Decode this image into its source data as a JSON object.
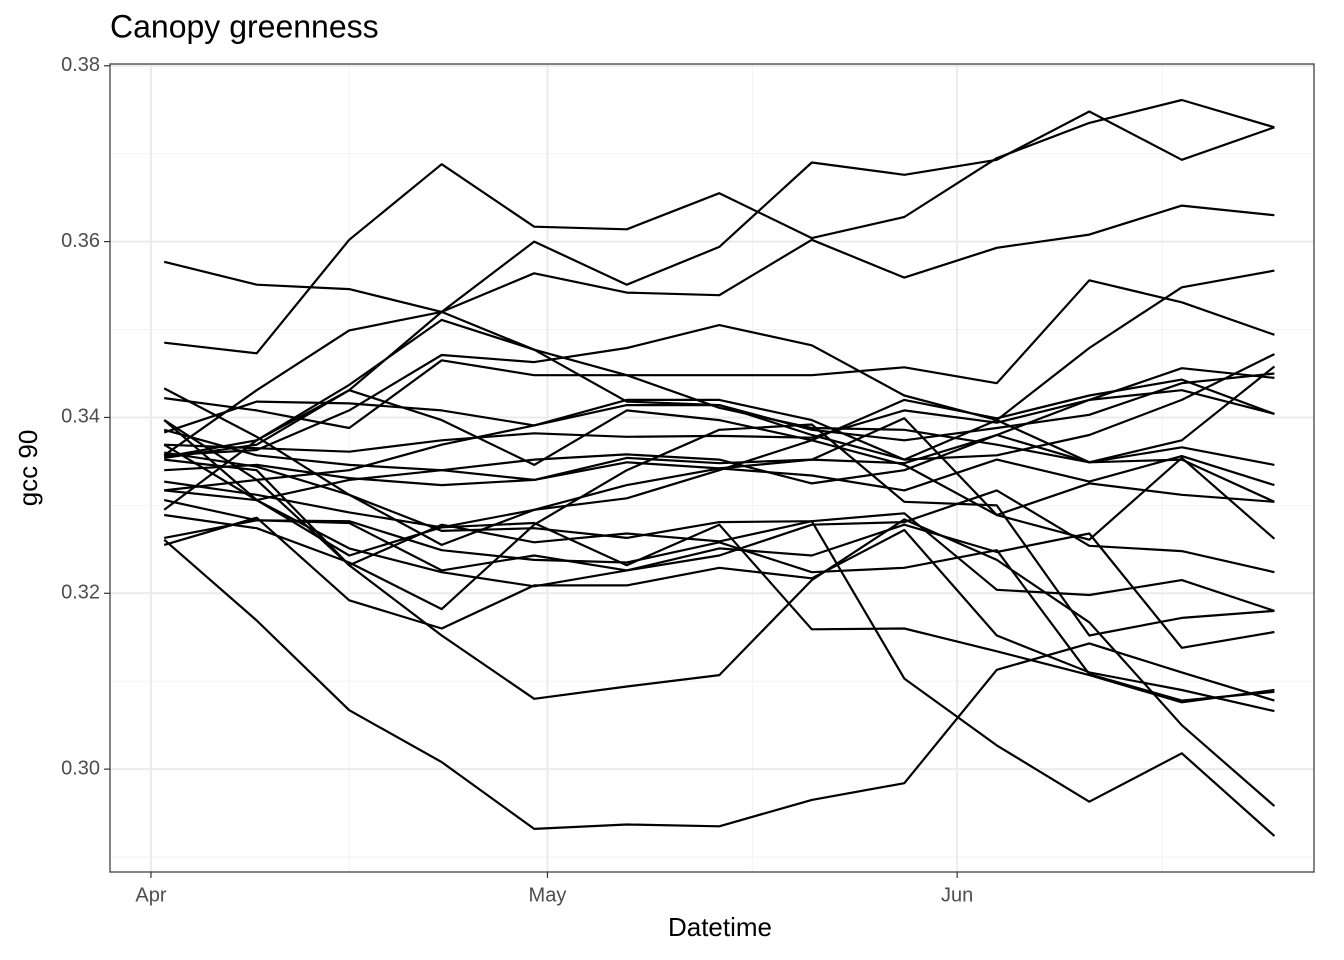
{
  "chart_data": {
    "type": "line",
    "title": "Canopy greenness",
    "x_label": "Datetime",
    "y_label": "gcc 90",
    "color": "#000000",
    "grid": true,
    "x": [
      1,
      8,
      15,
      22,
      29,
      36,
      43,
      50,
      57,
      64,
      71,
      78,
      85
    ],
    "xlim": [
      -3.1,
      88
    ],
    "xticks": [
      {
        "value": 0,
        "label": "Apr"
      },
      {
        "value": 30,
        "label": "May"
      },
      {
        "value": 61,
        "label": "Jun"
      }
    ],
    "ylim": [
      0.2883,
      0.3802
    ],
    "yticks": [
      {
        "value": 0.3,
        "label": "0.30"
      },
      0.32,
      0.34,
      0.36,
      0.38
    ],
    "series": [
      {
        "values": [
          0.3485,
          0.3473,
          0.3602,
          0.3688,
          0.3617,
          0.3614,
          0.3655,
          0.3604,
          0.3628,
          0.3695,
          0.3735,
          0.3761,
          0.373
        ]
      },
      {
        "values": [
          0.3295,
          0.3374,
          0.3431,
          0.352,
          0.36,
          0.3551,
          0.3594,
          0.369,
          0.3676,
          0.3693,
          0.3748,
          0.3693,
          0.373
        ]
      },
      {
        "values": [
          0.3357,
          0.3431,
          0.3499,
          0.352,
          0.3564,
          0.3542,
          0.3539,
          0.3602,
          0.3559,
          0.3593,
          0.3608,
          0.3641,
          0.363
        ]
      },
      {
        "values": [
          0.3577,
          0.3551,
          0.3546,
          0.352,
          0.3477,
          0.3448,
          0.3411,
          0.3388,
          0.3386,
          0.3369,
          0.3349,
          0.3352,
          0.3304
        ]
      },
      {
        "values": [
          0.3355,
          0.3374,
          0.3437,
          0.3511,
          0.3477,
          0.3418,
          0.3414,
          0.338,
          0.3352,
          0.3397,
          0.3479,
          0.3548,
          0.3567
        ]
      },
      {
        "values": [
          0.3422,
          0.3408,
          0.3388,
          0.3465,
          0.3448,
          0.3448,
          0.3448,
          0.3448,
          0.3457,
          0.3439,
          0.3556,
          0.3531,
          0.3494
        ]
      },
      {
        "values": [
          0.3317,
          0.3329,
          0.334,
          0.3369,
          0.3391,
          0.342,
          0.342,
          0.3397,
          0.3352,
          0.3357,
          0.338,
          0.342,
          0.3472
        ]
      },
      {
        "values": [
          0.3357,
          0.3363,
          0.3408,
          0.3471,
          0.3463,
          0.3479,
          0.3505,
          0.3482,
          0.3425,
          0.3397,
          0.3349,
          0.3374,
          0.3458
        ]
      },
      {
        "values": [
          0.3397,
          0.3306,
          0.3329,
          0.334,
          0.3352,
          0.3358,
          0.3352,
          0.3325,
          0.334,
          0.338,
          0.342,
          0.3456,
          0.3445
        ]
      },
      {
        "values": [
          0.3383,
          0.3418,
          0.3416,
          0.3408,
          0.3391,
          0.3414,
          0.3414,
          0.3386,
          0.3374,
          0.3388,
          0.3403,
          0.3439,
          0.345
        ]
      },
      {
        "values": [
          0.3369,
          0.3365,
          0.3361,
          0.3374,
          0.3382,
          0.3378,
          0.3379,
          0.3377,
          0.3408,
          0.3394,
          0.342,
          0.3431,
          0.3404
        ]
      },
      {
        "values": [
          0.3354,
          0.3369,
          0.3431,
          0.3397,
          0.3346,
          0.3408,
          0.3397,
          0.3374,
          0.342,
          0.3399,
          0.3425,
          0.3443,
          0.3404
        ]
      },
      {
        "values": [
          0.3386,
          0.3357,
          0.3346,
          0.334,
          0.3329,
          0.3354,
          0.3348,
          0.3352,
          0.3348,
          0.338,
          0.3349,
          0.3366,
          0.3346
        ]
      },
      {
        "values": [
          0.334,
          0.3346,
          0.3331,
          0.3323,
          0.3329,
          0.3349,
          0.3342,
          0.3334,
          0.3317,
          0.3352,
          0.3327,
          0.3356,
          0.3323
        ]
      },
      {
        "values": [
          0.3327,
          0.3312,
          0.3292,
          0.3275,
          0.3295,
          0.3308,
          0.334,
          0.3374,
          0.3346,
          0.3289,
          0.3325,
          0.3312,
          0.3304
        ]
      },
      {
        "values": [
          0.3433,
          0.3378,
          0.3312,
          0.3255,
          0.3295,
          0.3323,
          0.3342,
          0.3352,
          0.3399,
          0.3289,
          0.3261,
          0.3354,
          0.3262
        ]
      },
      {
        "values": [
          0.3306,
          0.3283,
          0.328,
          0.3226,
          0.3243,
          0.3226,
          0.3243,
          0.3278,
          0.3281,
          0.3317,
          0.3254,
          0.3248,
          0.3224
        ]
      },
      {
        "values": [
          0.336,
          0.3344,
          0.3312,
          0.3271,
          0.3274,
          0.3263,
          0.3281,
          0.3282,
          0.3291,
          0.3204,
          0.3198,
          0.3215,
          0.318
        ]
      },
      {
        "values": [
          0.3289,
          0.3274,
          0.3235,
          0.3182,
          0.3278,
          0.334,
          0.3386,
          0.3392,
          0.3304,
          0.33,
          0.3152,
          0.3172,
          0.318
        ]
      },
      {
        "values": [
          0.3317,
          0.3306,
          0.3251,
          0.3224,
          0.3208,
          0.3226,
          0.3251,
          0.3243,
          0.3278,
          0.3247,
          0.3268,
          0.3138,
          0.3156
        ]
      },
      {
        "values": [
          0.3263,
          0.3283,
          0.3282,
          0.3249,
          0.3238,
          0.3235,
          0.3258,
          0.3224,
          0.3229,
          0.3249,
          0.3108,
          0.3078,
          0.3088
        ]
      },
      {
        "values": [
          0.3255,
          0.3286,
          0.3192,
          0.316,
          0.3209,
          0.3209,
          0.3229,
          0.3217,
          0.3272,
          0.3152,
          0.311,
          0.309,
          0.3066
        ]
      },
      {
        "values": [
          0.3397,
          0.3329,
          0.3232,
          0.3152,
          0.308,
          0.3094,
          0.3107,
          0.3215,
          0.3284,
          0.3238,
          0.3167,
          0.305,
          0.2958
        ]
      },
      {
        "values": [
          0.3352,
          0.334,
          0.3232,
          0.3278,
          0.3258,
          0.3268,
          0.3259,
          0.3282,
          0.3103,
          0.3027,
          0.2963,
          0.3018,
          0.2924
        ]
      },
      {
        "values": [
          0.3261,
          0.3169,
          0.3067,
          0.3008,
          0.2932,
          0.2937,
          0.2935,
          0.2965,
          0.2984,
          0.3113,
          0.3143,
          0.311,
          0.3078
        ]
      },
      {
        "values": [
          0.3369,
          0.3306,
          0.3243,
          0.3275,
          0.328,
          0.3232,
          0.3278,
          0.3159,
          0.316,
          0.3134,
          0.3107,
          0.3076,
          0.309
        ]
      }
    ]
  }
}
